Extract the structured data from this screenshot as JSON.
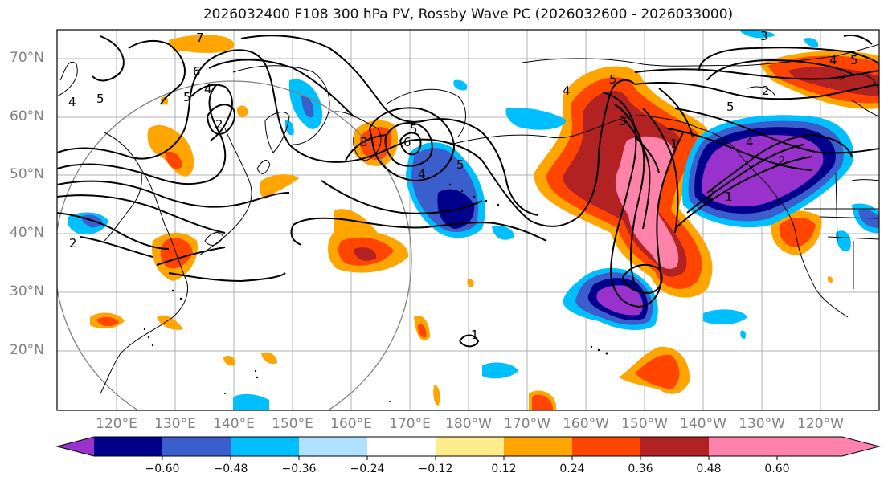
{
  "title": "2026032400 F108 300 hPa PV, Rossby Wave PC (2026032600 - 2026033000)",
  "lat_labels": [
    "70°N",
    "60°N",
    "50°N",
    "40°N",
    "30°N",
    "20°N"
  ],
  "lon_labels": [
    "120°E",
    "130°E",
    "140°E",
    "150°E",
    "160°E",
    "170°E",
    "180°W",
    "170°W",
    "160°W",
    "150°W",
    "140°W",
    "130°W",
    "120°W"
  ],
  "colorbar": {
    "colors": [
      "#9932cc",
      "#00008b",
      "#3a5fcd",
      "#00bfff",
      "#b0e2ff",
      "#ffffff",
      "#ffec8b",
      "#ffa500",
      "#ff4500",
      "#b22222",
      "#ff82ab"
    ],
    "ticks": [
      "−0.60",
      "−0.48",
      "−0.36",
      "−0.24",
      "−0.12",
      "0.12",
      "0.24",
      "0.36",
      "0.48",
      "0.60"
    ]
  },
  "contour_labels": [
    "4",
    "5",
    "6",
    "7",
    "5",
    "4",
    "2",
    "4",
    "5",
    "2",
    "3",
    "5",
    "6",
    "4",
    "5",
    "1",
    "3",
    "5",
    "4",
    "2",
    "5",
    "2",
    "1",
    "2",
    "1",
    "3",
    "4"
  ]
}
